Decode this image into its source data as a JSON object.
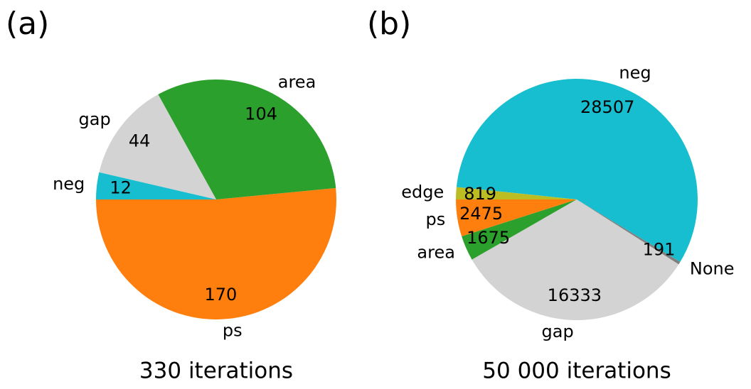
{
  "chart_data": [
    {
      "type": "pie",
      "panel_label": "(a)",
      "xlabel": "330 iterations",
      "startangle": 180,
      "counterclock": true,
      "categories": [
        "ps",
        "area",
        "gap",
        "neg"
      ],
      "values": [
        170,
        104,
        44,
        12
      ],
      "colors": [
        "#ff7f0e",
        "#2ca02c",
        "#d3d3d3",
        "#17becf"
      ]
    },
    {
      "type": "pie",
      "panel_label": "(b)",
      "xlabel": "50 000 iterations",
      "startangle": 180,
      "counterclock": true,
      "categories": [
        "ps",
        "area",
        "gap",
        "None",
        "neg",
        "edge"
      ],
      "values": [
        2475,
        1675,
        16333,
        191,
        28507,
        819
      ],
      "colors": [
        "#ff7f0e",
        "#2ca02c",
        "#d3d3d3",
        "#7f7f7f",
        "#17becf",
        "#bcbd22"
      ]
    }
  ]
}
